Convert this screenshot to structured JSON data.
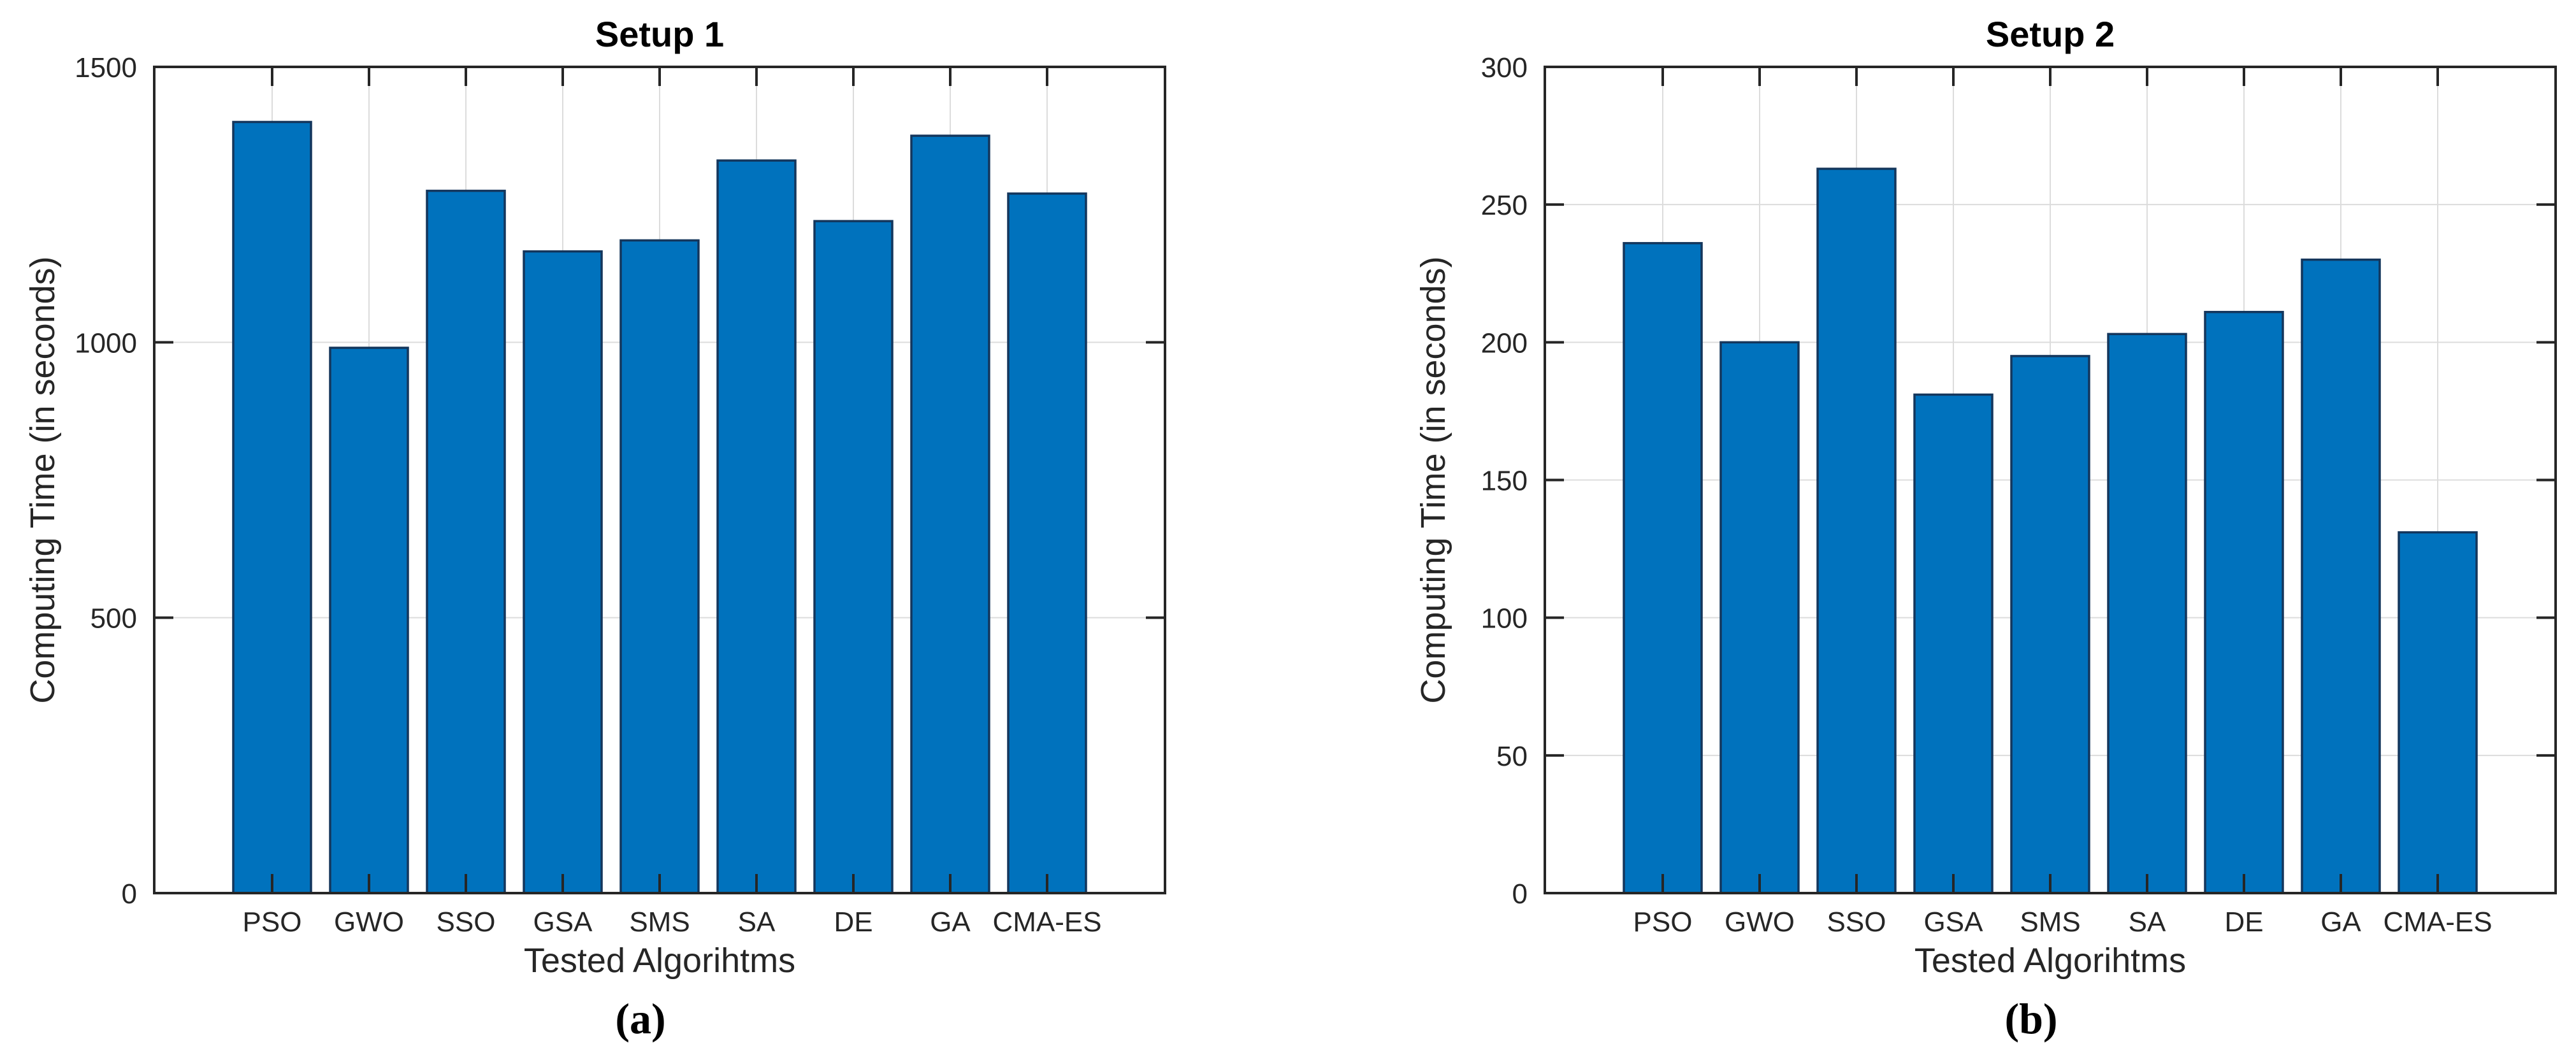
{
  "figure": {
    "background": "#ffffff",
    "axis_color": "#262626",
    "grid_color": "#dcdcdc",
    "bar_color": "#0072BD",
    "bar_edge_color": "#14365c"
  },
  "chart_data": [
    {
      "id": "setup-1",
      "type": "bar",
      "title": "Setup 1",
      "xlabel": "Tested Algorihtms",
      "ylabel": "Computing Time (in seconds)",
      "caption": "(a)",
      "categories": [
        "PSO",
        "GWO",
        "SSO",
        "GSA",
        "SMS",
        "SA",
        "DE",
        "GA",
        "CMA-ES"
      ],
      "values": [
        1400,
        990,
        1275,
        1165,
        1185,
        1330,
        1220,
        1375,
        1270
      ],
      "ylim": [
        0,
        1500
      ],
      "yticks": [
        0,
        500,
        1000,
        1500
      ],
      "grid": true,
      "legend": null
    },
    {
      "id": "setup-2",
      "type": "bar",
      "title": "Setup 2",
      "xlabel": "Tested Algorihtms",
      "ylabel": "Computing Time (in seconds)",
      "caption": "(b)",
      "categories": [
        "PSO",
        "GWO",
        "SSO",
        "GSA",
        "SMS",
        "SA",
        "DE",
        "GA",
        "CMA-ES"
      ],
      "values": [
        236,
        200,
        263,
        181,
        195,
        203,
        211,
        230,
        131
      ],
      "ylim": [
        0,
        300
      ],
      "yticks": [
        0,
        50,
        100,
        150,
        200,
        250,
        300
      ],
      "grid": true,
      "legend": null
    }
  ]
}
